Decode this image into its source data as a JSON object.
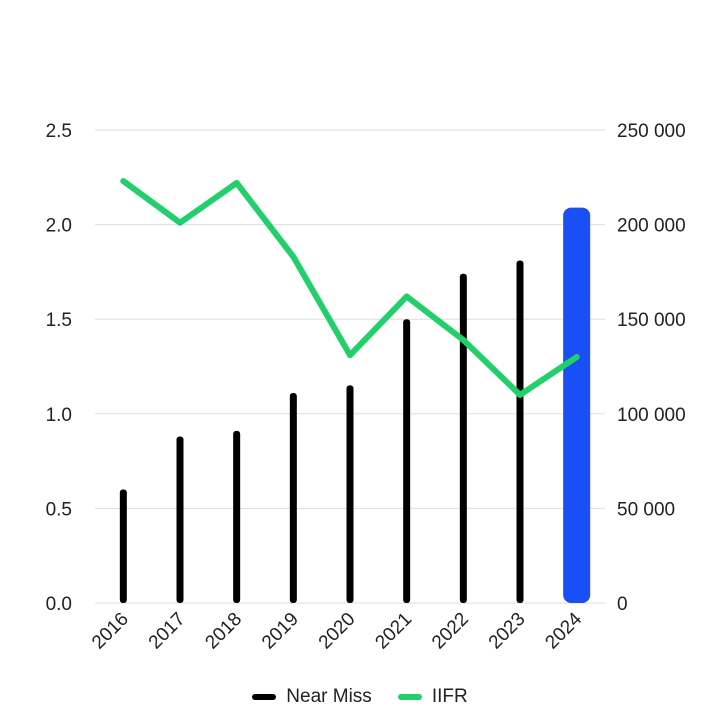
{
  "chart_data": {
    "type": "bar",
    "categories": [
      "2016",
      "2017",
      "2018",
      "2019",
      "2020",
      "2021",
      "2022",
      "2023",
      "2024"
    ],
    "series": [
      {
        "name": "Near Miss",
        "kind": "bar",
        "axis": "right",
        "color": "#000000",
        "values": [
          60000,
          88000,
          91000,
          111000,
          115000,
          150000,
          174000,
          181000,
          209000
        ],
        "highlight": {
          "index": 8,
          "color": "#1a4ff5"
        }
      },
      {
        "name": "IIFR",
        "kind": "line",
        "axis": "left",
        "color": "#22d06b",
        "values": [
          2.23,
          2.01,
          2.22,
          1.83,
          1.31,
          1.62,
          1.39,
          1.1,
          1.3
        ]
      }
    ],
    "y_left": {
      "ticks": [
        "0.0",
        "0.5",
        "1.0",
        "1.5",
        "2.0",
        "2.5"
      ],
      "ylim": [
        0,
        2.5
      ]
    },
    "y_right": {
      "ticks": [
        "0",
        "50 000",
        "100 000",
        "150 000",
        "200 000",
        "250 000"
      ],
      "ylim": [
        0,
        250000
      ]
    },
    "grid": true,
    "legend_position": "bottom-center"
  }
}
